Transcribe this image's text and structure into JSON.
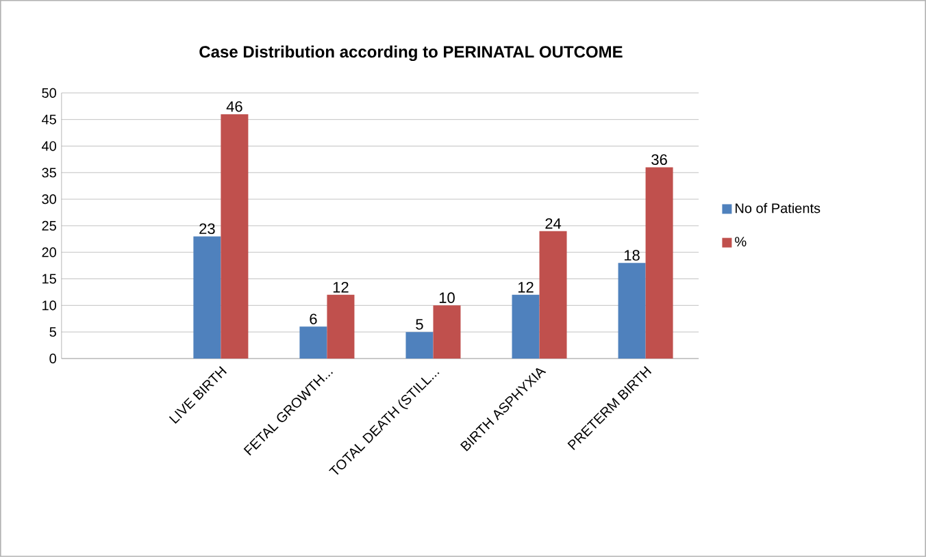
{
  "chart_data": {
    "type": "bar",
    "title": "Case Distribution according to PERINATAL OUTCOME",
    "categories": [
      null,
      "LIVE BIRTH",
      "FETAL GROWTH...",
      "TOTAL DEATH (STILL...",
      "BIRTH ASPHYXIA",
      "PRETERM BIRTH"
    ],
    "series": [
      {
        "name": "No of Patients",
        "color": "#4f81bd",
        "values": [
          null,
          23,
          6,
          5,
          12,
          18
        ]
      },
      {
        "name": "%",
        "color": "#c0504d",
        "values": [
          null,
          46,
          12,
          10,
          24,
          36
        ]
      }
    ],
    "ylim": [
      0,
      50
    ],
    "yticks": [
      0,
      5,
      10,
      15,
      20,
      25,
      30,
      35,
      40,
      45,
      50
    ],
    "grid": "y",
    "legend": "right",
    "data_labels": true
  }
}
